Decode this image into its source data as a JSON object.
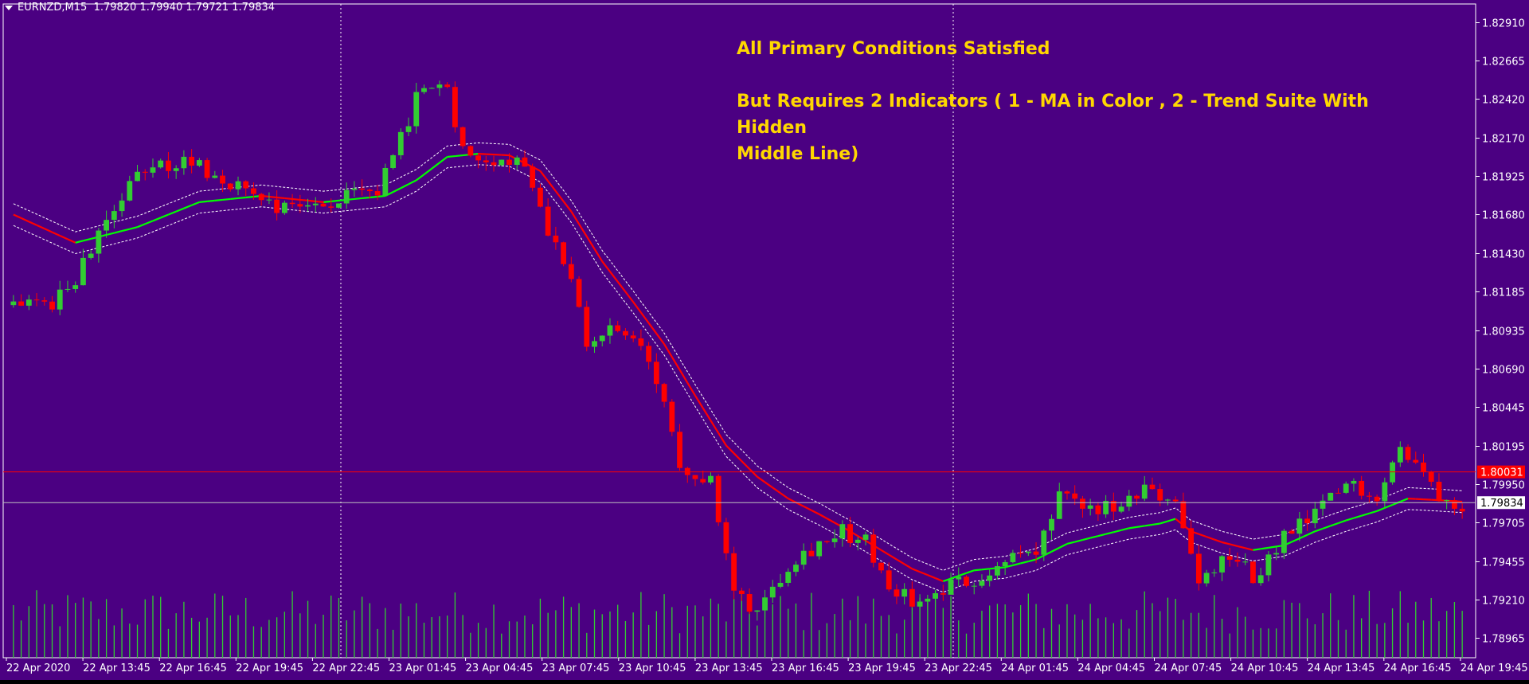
{
  "header": {
    "symbol": "EURNZD,M15",
    "open": "1.79820",
    "high": "1.79940",
    "low": "1.79721",
    "close": "1.79834"
  },
  "annotation": {
    "line1": "All Primary Conditions Satisfied",
    "line2": "But Requires 2 Indicators ( 1 - MA in Color , 2 - Trend Suite With Hidden",
    "line3": "Middle Line)"
  },
  "colors": {
    "background": "#4B0082",
    "bull_candle": "#32CD32",
    "bear_candle": "#FF0000",
    "ma_up": "#00FF00",
    "ma_down": "#FF0000",
    "band": "#FFFFFF",
    "axis_text": "#FFFFFF",
    "bid_line": "#C0C0C0",
    "ask_line": "#FF0000",
    "volume": "#32CD32"
  },
  "chart_data": {
    "type": "candlestick",
    "symbol": "EURNZD",
    "timeframe": "M15",
    "y_ticks": [
      "1.82910",
      "1.82665",
      "1.82420",
      "1.82170",
      "1.81925",
      "1.81680",
      "1.81430",
      "1.81185",
      "1.80935",
      "1.80690",
      "1.80445",
      "1.80195",
      "1.79950",
      "1.79705",
      "1.79455",
      "1.79210",
      "1.78965"
    ],
    "ylim": [
      1.7884,
      1.8303
    ],
    "x_ticks": [
      "22 Apr 2020",
      "22 Apr 13:45",
      "22 Apr 16:45",
      "22 Apr 19:45",
      "22 Apr 22:45",
      "23 Apr 01:45",
      "23 Apr 04:45",
      "23 Apr 07:45",
      "23 Apr 10:45",
      "23 Apr 13:45",
      "23 Apr 16:45",
      "23 Apr 19:45",
      "23 Apr 22:45",
      "24 Apr 01:45",
      "24 Apr 04:45",
      "24 Apr 07:45",
      "24 Apr 10:45",
      "24 Apr 13:45",
      "24 Apr 16:45",
      "24 Apr 19:45"
    ],
    "bid_price": "1.79834",
    "ask_price": "1.80031",
    "bid_value": 1.79834,
    "ask_value": 1.80031,
    "period_separators": [
      "23 Apr 2020",
      "24 Apr 2020"
    ],
    "close_path": [
      {
        "x": 0,
        "y": 1.811
      },
      {
        "x": 2,
        "y": 1.8118
      },
      {
        "x": 5,
        "y": 1.8108
      },
      {
        "x": 9,
        "y": 1.8135
      },
      {
        "x": 12,
        "y": 1.8162
      },
      {
        "x": 15,
        "y": 1.8188
      },
      {
        "x": 19,
        "y": 1.8198
      },
      {
        "x": 23,
        "y": 1.8203
      },
      {
        "x": 27,
        "y": 1.819
      },
      {
        "x": 31,
        "y": 1.8182
      },
      {
        "x": 35,
        "y": 1.8172
      },
      {
        "x": 39,
        "y": 1.8175
      },
      {
        "x": 43,
        "y": 1.8178
      },
      {
        "x": 47,
        "y": 1.8182
      },
      {
        "x": 50,
        "y": 1.8215
      },
      {
        "x": 52,
        "y": 1.8245
      },
      {
        "x": 56,
        "y": 1.8248
      },
      {
        "x": 58,
        "y": 1.821
      },
      {
        "x": 62,
        "y": 1.8205
      },
      {
        "x": 66,
        "y": 1.8202
      },
      {
        "x": 69,
        "y": 1.816
      },
      {
        "x": 71,
        "y": 1.814
      },
      {
        "x": 74,
        "y": 1.8085
      },
      {
        "x": 78,
        "y": 1.8095
      },
      {
        "x": 82,
        "y": 1.8075
      },
      {
        "x": 86,
        "y": 1.801
      },
      {
        "x": 90,
        "y": 1.7995
      },
      {
        "x": 93,
        "y": 1.7925
      },
      {
        "x": 96,
        "y": 1.7915
      },
      {
        "x": 100,
        "y": 1.7945
      },
      {
        "x": 103,
        "y": 1.7955
      },
      {
        "x": 107,
        "y": 1.7965
      },
      {
        "x": 110,
        "y": 1.7958
      },
      {
        "x": 113,
        "y": 1.793
      },
      {
        "x": 117,
        "y": 1.7918
      },
      {
        "x": 121,
        "y": 1.793
      },
      {
        "x": 125,
        "y": 1.7935
      },
      {
        "x": 128,
        "y": 1.7948
      },
      {
        "x": 132,
        "y": 1.795
      },
      {
        "x": 135,
        "y": 1.7985
      },
      {
        "x": 139,
        "y": 1.798
      },
      {
        "x": 143,
        "y": 1.7978
      },
      {
        "x": 146,
        "y": 1.799
      },
      {
        "x": 150,
        "y": 1.7985
      },
      {
        "x": 153,
        "y": 1.793
      },
      {
        "x": 157,
        "y": 1.795
      },
      {
        "x": 160,
        "y": 1.7935
      },
      {
        "x": 164,
        "y": 1.796
      },
      {
        "x": 168,
        "y": 1.7975
      },
      {
        "x": 172,
        "y": 1.7995
      },
      {
        "x": 176,
        "y": 1.799
      },
      {
        "x": 179,
        "y": 1.8018
      },
      {
        "x": 181,
        "y": 1.8008
      },
      {
        "x": 184,
        "y": 1.799
      },
      {
        "x": 187,
        "y": 1.7983
      }
    ],
    "ma_path": [
      {
        "x": 0,
        "y": 1.8168
      },
      {
        "x": 8,
        "y": 1.815
      },
      {
        "x": 16,
        "y": 1.816
      },
      {
        "x": 24,
        "y": 1.8176
      },
      {
        "x": 32,
        "y": 1.818
      },
      {
        "x": 40,
        "y": 1.8176
      },
      {
        "x": 48,
        "y": 1.818
      },
      {
        "x": 52,
        "y": 1.819
      },
      {
        "x": 56,
        "y": 1.8205
      },
      {
        "x": 60,
        "y": 1.8207
      },
      {
        "x": 64,
        "y": 1.8206
      },
      {
        "x": 68,
        "y": 1.8196
      },
      {
        "x": 72,
        "y": 1.817
      },
      {
        "x": 76,
        "y": 1.8138
      },
      {
        "x": 80,
        "y": 1.8112
      },
      {
        "x": 84,
        "y": 1.8085
      },
      {
        "x": 88,
        "y": 1.8052
      },
      {
        "x": 92,
        "y": 1.802
      },
      {
        "x": 96,
        "y": 1.8
      },
      {
        "x": 100,
        "y": 1.7986
      },
      {
        "x": 104,
        "y": 1.7976
      },
      {
        "x": 108,
        "y": 1.7965
      },
      {
        "x": 112,
        "y": 1.7953
      },
      {
        "x": 116,
        "y": 1.7941
      },
      {
        "x": 120,
        "y": 1.7933
      },
      {
        "x": 124,
        "y": 1.794
      },
      {
        "x": 128,
        "y": 1.7942
      },
      {
        "x": 132,
        "y": 1.7947
      },
      {
        "x": 136,
        "y": 1.7957
      },
      {
        "x": 140,
        "y": 1.7962
      },
      {
        "x": 144,
        "y": 1.7967
      },
      {
        "x": 148,
        "y": 1.797
      },
      {
        "x": 150,
        "y": 1.7973
      },
      {
        "x": 152,
        "y": 1.7965
      },
      {
        "x": 156,
        "y": 1.7958
      },
      {
        "x": 160,
        "y": 1.7953
      },
      {
        "x": 164,
        "y": 1.7956
      },
      {
        "x": 168,
        "y": 1.7965
      },
      {
        "x": 172,
        "y": 1.7972
      },
      {
        "x": 176,
        "y": 1.7978
      },
      {
        "x": 180,
        "y": 1.7986
      },
      {
        "x": 184,
        "y": 1.7985
      },
      {
        "x": 187,
        "y": 1.7984
      }
    ],
    "band_offset": 0.0007
  }
}
